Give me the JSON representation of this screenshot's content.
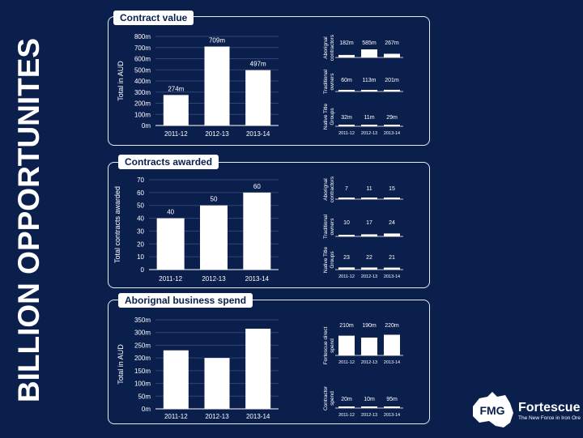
{
  "page": {
    "vertical_title": "BILLION OPPORTUNITES",
    "colors": {
      "background": "#0b1f4d",
      "bar": "#ffffff",
      "grid": "#2f4575",
      "text": "#ffffff"
    },
    "logo": {
      "mark": "FMG",
      "name": "Fortescue",
      "tagline": "The New Force in Iron Ore"
    }
  },
  "chart_data": [
    {
      "type": "bar",
      "title": "Contract value",
      "ylabel": "Total in AUD",
      "categories": [
        "2011-12",
        "2012-13",
        "2013-14"
      ],
      "values": [
        274,
        709,
        497
      ],
      "data_labels": [
        "274m",
        "709m",
        "497m"
      ],
      "yticks": [
        "0m",
        "100m",
        "200m",
        "300m",
        "400m",
        "500m",
        "600m",
        "700m",
        "800m"
      ],
      "ylim": [
        0,
        800
      ],
      "grid": true,
      "breakdown": [
        {
          "label": "Aborignal contractors",
          "values": [
            182,
            585,
            267
          ],
          "data_labels": [
            "182m",
            "585m",
            "267m"
          ],
          "categories": [
            "2011-12",
            "2012-13",
            "2013-14"
          ]
        },
        {
          "label": "Traditional owners",
          "values": [
            60,
            113,
            201
          ],
          "data_labels": [
            "60m",
            "113m",
            "201m"
          ],
          "categories": [
            "2011-12",
            "2012-13",
            "2013-14"
          ]
        },
        {
          "label": "Native Title Groups",
          "values": [
            32,
            11,
            29
          ],
          "data_labels": [
            "32m",
            "11m",
            "29m"
          ],
          "categories": [
            "2011-12",
            "2012-13",
            "2013-14"
          ]
        }
      ]
    },
    {
      "type": "bar",
      "title": "Contracts awarded",
      "ylabel": "Total contracts awarded",
      "categories": [
        "2011-12",
        "2012-13",
        "2013-14"
      ],
      "values": [
        40,
        50,
        60
      ],
      "data_labels": [
        "40",
        "50",
        "60"
      ],
      "yticks": [
        "0",
        "10",
        "20",
        "30",
        "40",
        "50",
        "60",
        "70"
      ],
      "ylim": [
        0,
        70
      ],
      "grid": true,
      "breakdown": [
        {
          "label": "Aborignal contractors",
          "values": [
            7,
            11,
            15
          ],
          "data_labels": [
            "7",
            "11",
            "15"
          ],
          "categories": [
            "2011-12",
            "2012-13",
            "2013-14"
          ]
        },
        {
          "label": "Traditional owners",
          "values": [
            10,
            17,
            24
          ],
          "data_labels": [
            "10",
            "17",
            "24"
          ],
          "categories": [
            "2011-12",
            "2012-13",
            "2013-14"
          ]
        },
        {
          "label": "Native Title Groups",
          "values": [
            23,
            22,
            21
          ],
          "data_labels": [
            "23",
            "22",
            "21"
          ],
          "categories": [
            "2011-12",
            "2012-13",
            "2013-14"
          ]
        }
      ]
    },
    {
      "type": "bar",
      "title": "Aborignal business spend",
      "ylabel": "Total in AUD",
      "categories": [
        "2011-12",
        "2012-13",
        "2013-14"
      ],
      "values": [
        230,
        200,
        315
      ],
      "data_labels": [],
      "yticks": [
        "0m",
        "50m",
        "100m",
        "150m",
        "200m",
        "250m",
        "300m",
        "350m"
      ],
      "ylim": [
        0,
        350
      ],
      "grid": true,
      "breakdown": [
        {
          "label": "Fortescue direct spend",
          "values": [
            210,
            190,
            220
          ],
          "data_labels": [
            "210m",
            "190m",
            "220m"
          ],
          "categories": [
            "2011-12",
            "2012-13",
            "2013-14"
          ]
        },
        {
          "label": "Contractor spend",
          "values": [
            20,
            10,
            95
          ],
          "data_labels": [
            "20m",
            "10m",
            "95m"
          ],
          "categories": [
            "2011-12",
            "2012-13",
            "2013-14"
          ]
        }
      ]
    }
  ]
}
